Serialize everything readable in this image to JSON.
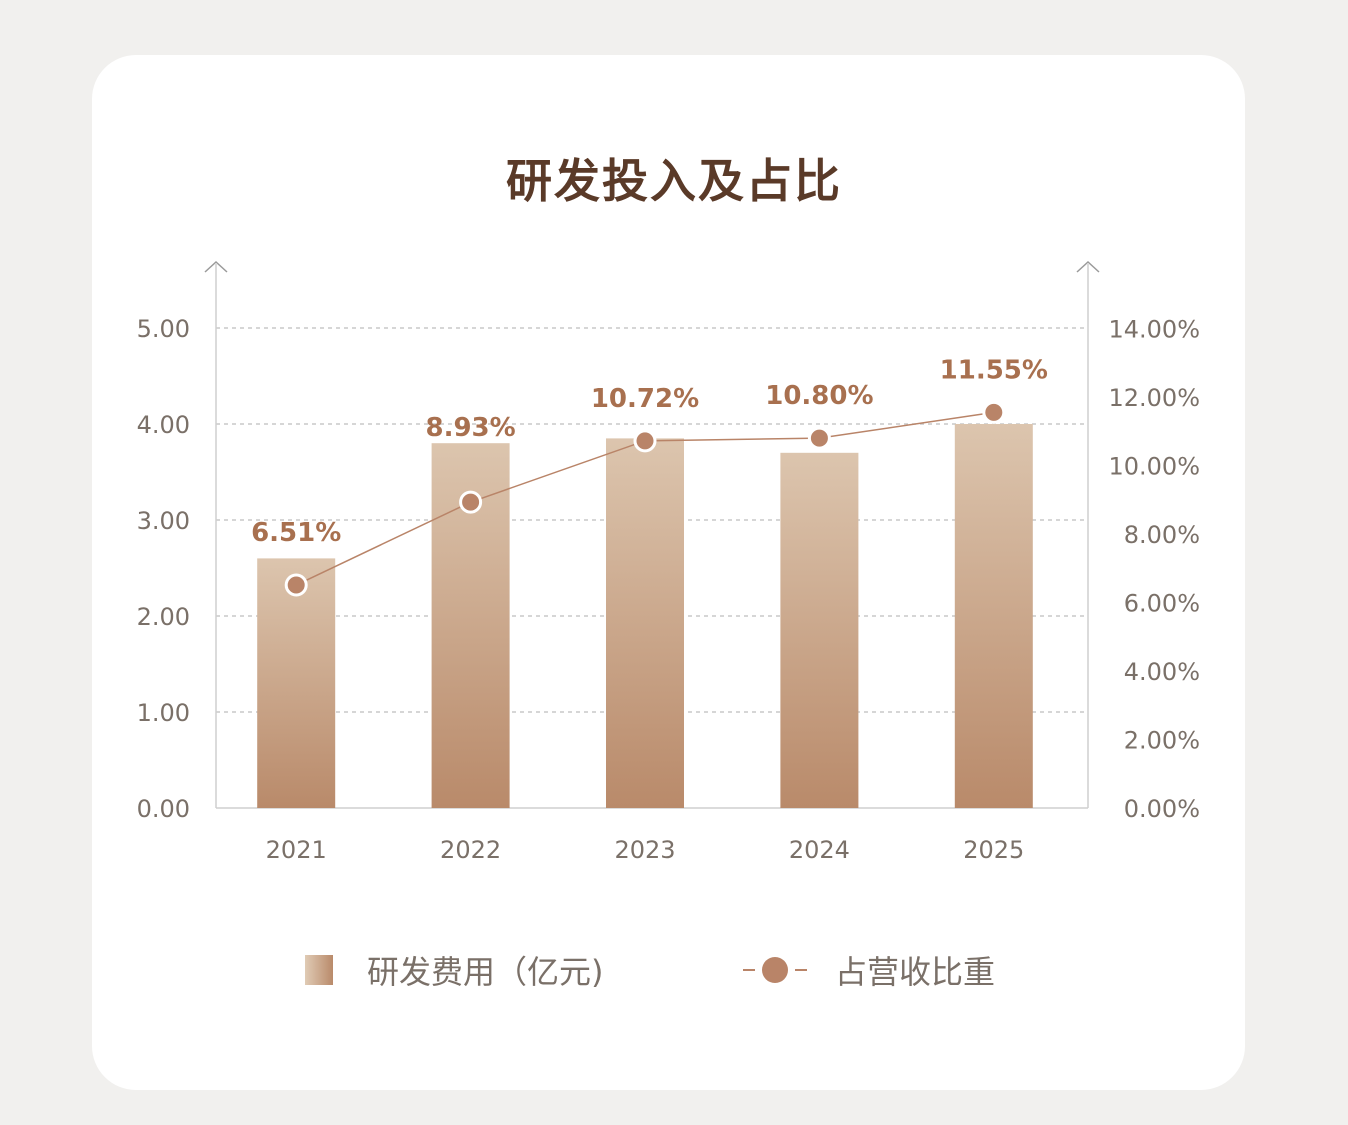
{
  "chart_data": {
    "type": "bar",
    "title": "研发投入及占比",
    "categories": [
      "2021",
      "2022",
      "2023",
      "2024",
      "2025"
    ],
    "series": [
      {
        "name": "研发费用（亿元)",
        "type": "bar",
        "axis": "left",
        "values": [
          2.6,
          3.8,
          3.85,
          3.7,
          4.0
        ]
      },
      {
        "name": "占营收比重",
        "type": "line",
        "axis": "right",
        "values": [
          6.51,
          8.93,
          10.72,
          10.8,
          11.55
        ],
        "labels": [
          "6.51%",
          "8.93%",
          "10.72%",
          "10.80%",
          "11.55%"
        ]
      }
    ],
    "y_left": {
      "ylim": [
        0,
        5
      ],
      "ticks": [
        0,
        1,
        2,
        3,
        4,
        5
      ],
      "tick_labels": [
        "0.00",
        "1.00",
        "2.00",
        "3.00",
        "4.00",
        "5.00"
      ]
    },
    "y_right": {
      "ylim": [
        0,
        14
      ],
      "ticks": [
        0,
        2,
        4,
        6,
        8,
        10,
        12,
        14
      ],
      "tick_labels": [
        "0.00%",
        "2.00%",
        "4.00%",
        "6.00%",
        "8.00%",
        "10.00%",
        "12.00%",
        "14.00%"
      ]
    },
    "grid": true,
    "legend_position": "bottom",
    "colors": {
      "bar_light": "#dcc5ae",
      "bar_dark": "#b98a6a",
      "line": "#b98468",
      "label": "#a8704f",
      "title": "#5a3a28",
      "grid": "#c8c8c8",
      "axis": "#cfcfcf",
      "tick_text": "#7a7068"
    }
  }
}
